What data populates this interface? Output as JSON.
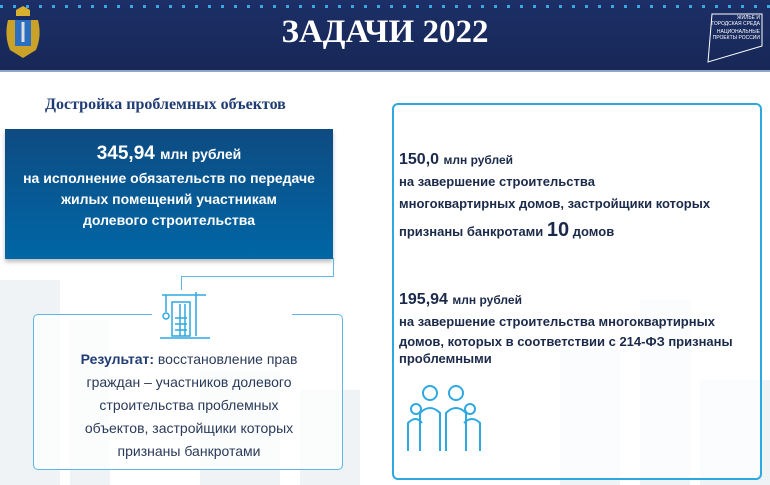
{
  "header": {
    "title": "ЗАДАЧИ 2022",
    "logo_text": [
      "ЖИЛЬЕ И ГОРОДСКАЯ СРЕДА",
      "НАЦИОНАЛЬНЫЕ ПРОЕКТЫ РОССИИ"
    ]
  },
  "subtitle": "Достройка проблемных объектов",
  "main": {
    "amount": "345,94",
    "unit": "млн рублей",
    "lines": [
      "на исполнение обязательств по передаче",
      "жилых помещений участникам",
      "долевого строительства"
    ]
  },
  "result": {
    "label": "Результат:",
    "lines": [
      "восстановление  прав",
      "граждан –  участников долевого",
      "строительства проблемных",
      "объектов, застройщики которых",
      "признаны банкротами"
    ]
  },
  "items": [
    {
      "amount": "150,0",
      "unit": "млн рублей",
      "lines": [
        "на завершение строительства",
        "многоквартирных домов, застройщики которых"
      ],
      "last_prefix": "признаны банкротами",
      "count": "10",
      "count_suffix": "домов"
    },
    {
      "amount": "195,94",
      "unit": "млн рублей",
      "lines": [
        "на завершение строительства многоквартирных",
        "домов, которых в соответствии с 214-ФЗ признаны",
        "проблемными"
      ]
    }
  ],
  "colors": {
    "header": "#1c2f66",
    "accent": "#2ea9e0",
    "box": "#0e4b82"
  }
}
